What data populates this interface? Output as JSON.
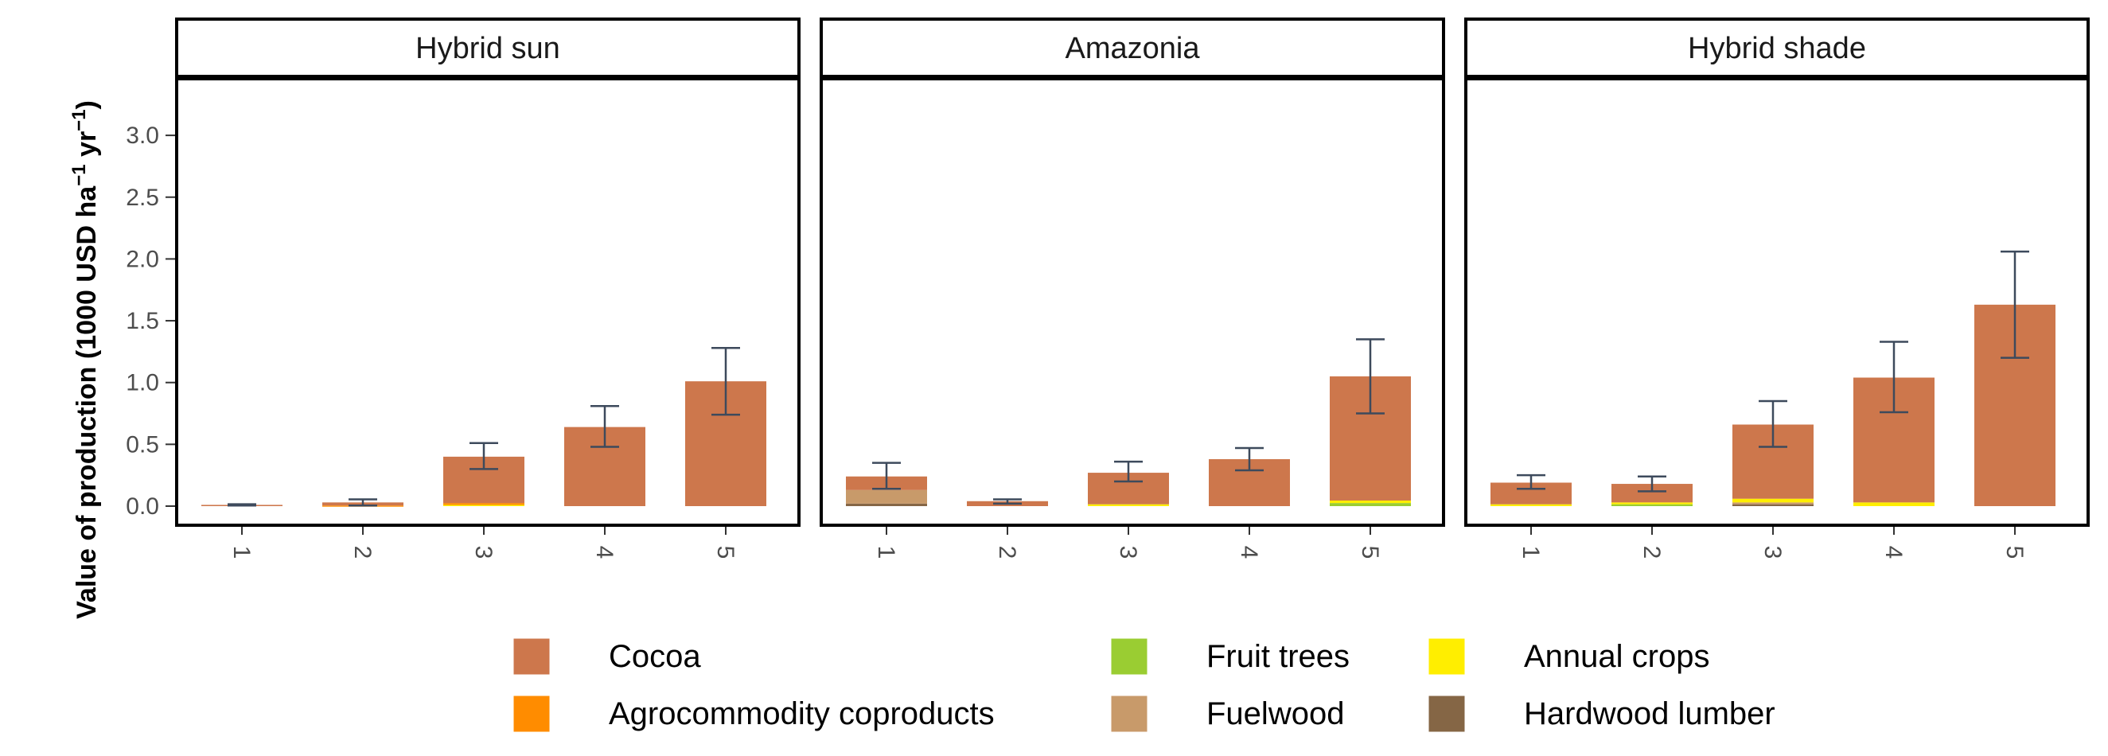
{
  "chart_data": {
    "type": "bar",
    "stacked": true,
    "facets": [
      "Hybrid sun",
      "Amazonia",
      "Hybrid shade"
    ],
    "categories": [
      "1",
      "2",
      "3",
      "4",
      "5"
    ],
    "ylabel": "Value of production (1000 USD ha",
    "ylabel_unit_sup": "−1",
    "ylabel_mid": " yr",
    "ylabel_unit_sup2": "−1",
    "ylabel_end": ")",
    "ylim": [
      -0.15,
      3.5
    ],
    "yticks": [
      0.0,
      0.5,
      1.0,
      1.5,
      2.0,
      2.5,
      3.0
    ],
    "ytick_labels": [
      "0.0",
      "0.5",
      "1.0",
      "1.5",
      "2.0",
      "2.5",
      "3.0"
    ],
    "grid": false,
    "legend_position": "bottom",
    "series": [
      {
        "name": "Cocoa",
        "color": "#cd774c"
      },
      {
        "name": "Agrocommodity coproducts",
        "color": "#ff8c00"
      },
      {
        "name": "Fruit trees",
        "color": "#9acd32"
      },
      {
        "name": "Fuelwood",
        "color": "#c89a6a"
      },
      {
        "name": "Annual crops",
        "color": "#ffee00"
      },
      {
        "name": "Hardwood lumber",
        "color": "#856645"
      }
    ],
    "legend_order": [
      "Cocoa",
      "Agrocommodity coproducts",
      "Fruit trees",
      "Fuelwood",
      "Annual crops",
      "Hardwood lumber"
    ],
    "data": {
      "Hybrid sun": [
        {
          "segments": {
            "Cocoa": 0.01
          },
          "total": 0.01,
          "err_low": 0.005,
          "err_high": 0.015
        },
        {
          "segments": {
            "Cocoa": 0.025,
            "Agrocommodity coproducts": 0.005
          },
          "total": 0.03,
          "err_low": 0.005,
          "err_high": 0.055
        },
        {
          "segments": {
            "Annual crops": 0.01,
            "Agrocommodity coproducts": 0.015,
            "Cocoa": 0.375
          },
          "total": 0.4,
          "err_low": 0.3,
          "err_high": 0.51
        },
        {
          "segments": {
            "Cocoa": 0.64
          },
          "total": 0.64,
          "err_low": 0.48,
          "err_high": 0.81
        },
        {
          "segments": {
            "Cocoa": 1.01
          },
          "total": 1.01,
          "err_low": 0.74,
          "err_high": 1.28
        }
      ],
      "Amazonia": [
        {
          "segments": {
            "Hardwood lumber": 0.02,
            "Fuelwood": 0.11,
            "Cocoa": 0.11
          },
          "total": 0.24,
          "err_low": 0.14,
          "err_high": 0.35
        },
        {
          "segments": {
            "Cocoa": 0.04
          },
          "total": 0.04,
          "err_low": 0.02,
          "err_high": 0.055
        },
        {
          "segments": {
            "Annual crops": 0.015,
            "Cocoa": 0.255
          },
          "total": 0.27,
          "err_low": 0.2,
          "err_high": 0.36
        },
        {
          "segments": {
            "Cocoa": 0.38
          },
          "total": 0.38,
          "err_low": 0.29,
          "err_high": 0.47
        },
        {
          "segments": {
            "Annual crops": 0.02,
            "Fruit trees": 0.025,
            "Cocoa": 1.005
          },
          "total": 1.05,
          "err_low": 0.75,
          "err_high": 1.35
        }
      ],
      "Hybrid shade": [
        {
          "segments": {
            "Annual crops": 0.015,
            "Cocoa": 0.175
          },
          "total": 0.19,
          "err_low": 0.14,
          "err_high": 0.25
        },
        {
          "segments": {
            "Annual crops": 0.015,
            "Fruit trees": 0.015,
            "Cocoa": 0.15
          },
          "total": 0.18,
          "err_low": 0.12,
          "err_high": 0.24
        },
        {
          "segments": {
            "Hardwood lumber": 0.015,
            "Fuelwood": 0.015,
            "Annual crops": 0.03,
            "Cocoa": 0.6
          },
          "total": 0.66,
          "err_low": 0.48,
          "err_high": 0.85
        },
        {
          "segments": {
            "Annual crops": 0.03,
            "Cocoa": 1.01
          },
          "total": 1.04,
          "err_low": 0.76,
          "err_high": 1.33
        },
        {
          "segments": {
            "Cocoa": 1.63
          },
          "total": 1.63,
          "err_low": 1.2,
          "err_high": 2.06
        }
      ]
    },
    "error_bar_color": "#3d4a5c"
  }
}
